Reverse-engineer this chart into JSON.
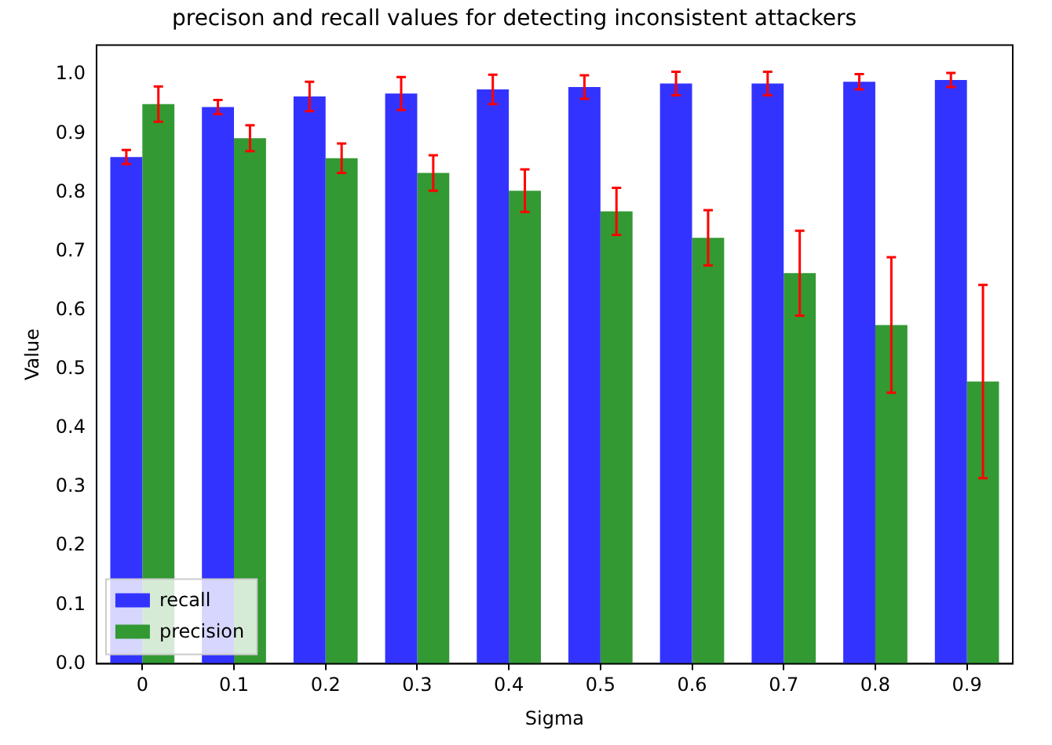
{
  "chart_data": {
    "type": "bar",
    "title": "precison and recall values for detecting inconsistent attackers",
    "xlabel": "Sigma",
    "ylabel": "Value",
    "categories": [
      "0",
      "0.1",
      "0.2",
      "0.3",
      "0.4",
      "0.5",
      "0.6",
      "0.7",
      "0.8",
      "0.9"
    ],
    "series": [
      {
        "name": "recall",
        "color": "#3333ff",
        "values": [
          0.86,
          0.945,
          0.963,
          0.968,
          0.975,
          0.979,
          0.985,
          0.985,
          0.988,
          0.991
        ],
        "errors": [
          0.012,
          0.012,
          0.025,
          0.028,
          0.025,
          0.02,
          0.02,
          0.02,
          0.013,
          0.012
        ]
      },
      {
        "name": "precision",
        "color": "#339933",
        "values": [
          0.95,
          0.892,
          0.858,
          0.833,
          0.803,
          0.768,
          0.723,
          0.663,
          0.575,
          0.479
        ],
        "errors": [
          0.03,
          0.022,
          0.025,
          0.03,
          0.036,
          0.04,
          0.047,
          0.072,
          0.115,
          0.164
        ]
      }
    ],
    "ylim": [
      0,
      1.05
    ],
    "yticks": [
      {
        "value": 0,
        "label": "0.0"
      },
      0.1,
      0.2,
      0.3,
      0.4,
      0.5,
      0.6,
      0.7,
      0.8,
      0.9,
      {
        "value": 1,
        "label": "1.0"
      }
    ],
    "grid": false,
    "legend": "bottom left"
  }
}
